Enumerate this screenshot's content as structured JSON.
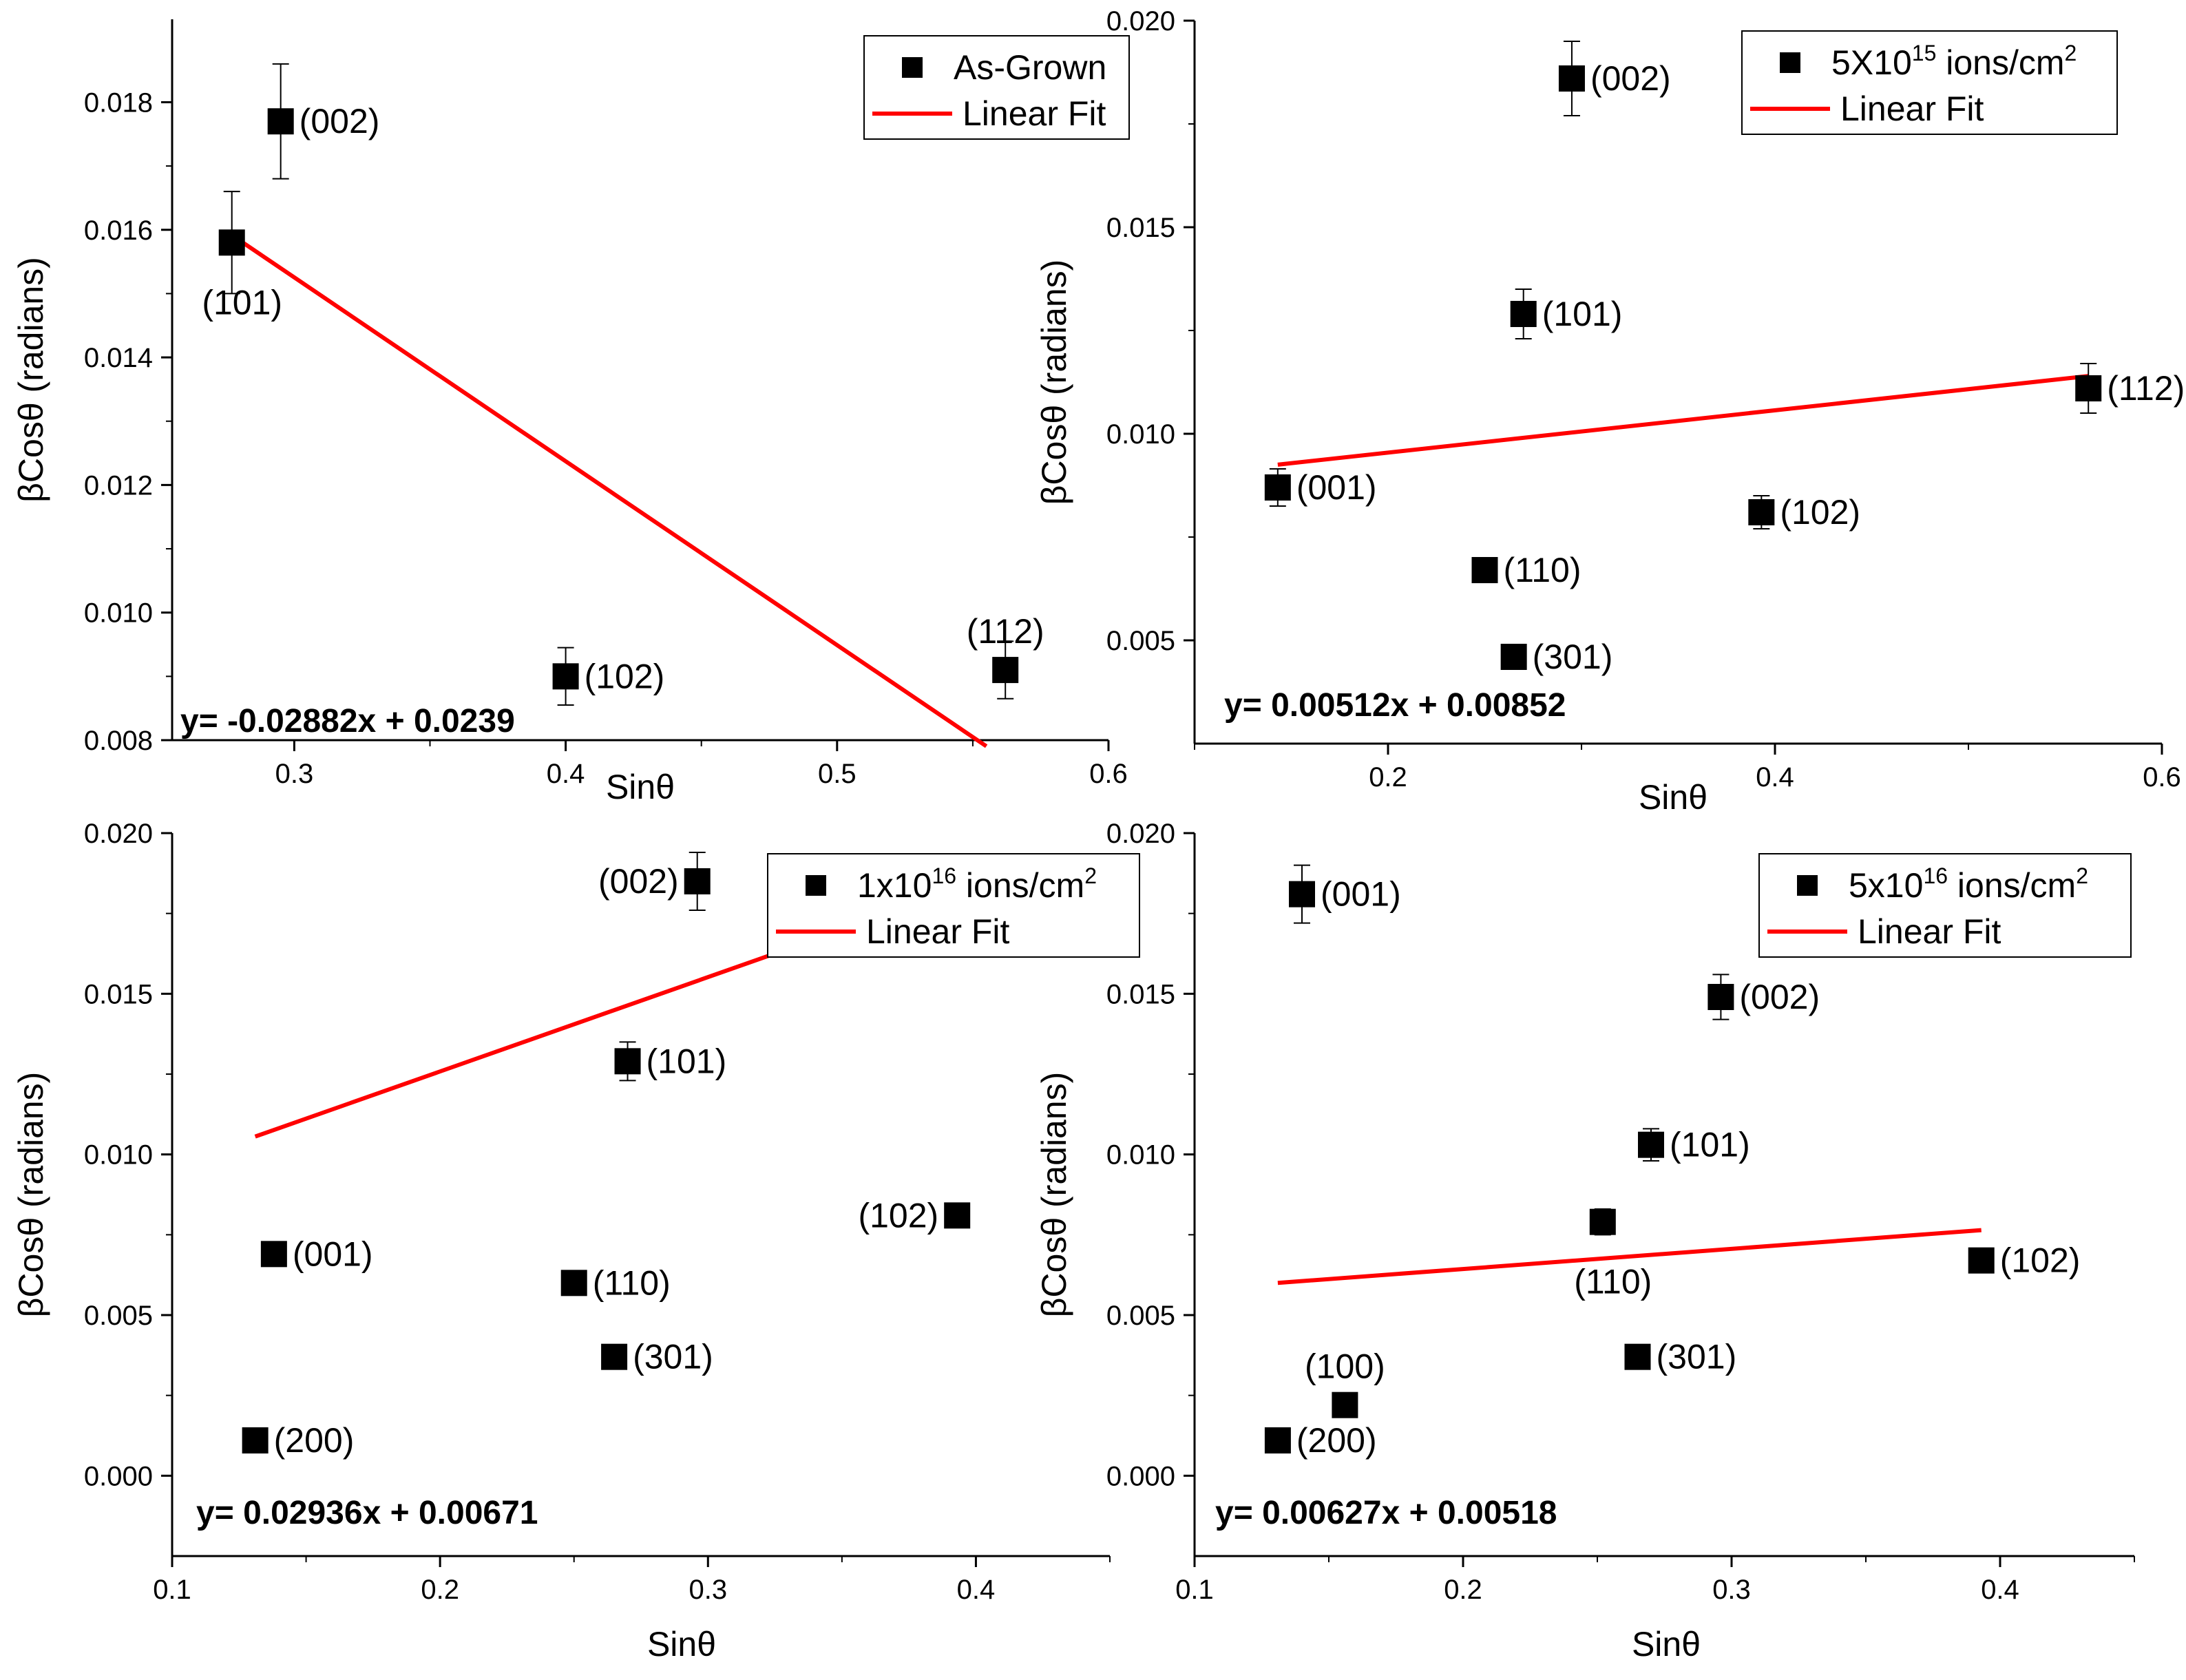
{
  "chart_data": [
    {
      "type": "scatter",
      "title": "",
      "xlabel": "Sinθ",
      "ylabel": "βCosθ (radians)",
      "xlim": [
        0.255,
        0.6
      ],
      "ylim": [
        0.008,
        0.0193
      ],
      "xticks": [
        0.3,
        0.4,
        0.5,
        0.6
      ],
      "xtick_labels": [
        "0.3",
        "0.4",
        "0.5",
        "0.6"
      ],
      "yticks": [
        0.008,
        0.01,
        0.012,
        0.014,
        0.016,
        0.018
      ],
      "ytick_labels": [
        "0.008",
        "0.010",
        "0.012",
        "0.014",
        "0.016",
        "0.018"
      ],
      "legend": {
        "position": "top-right",
        "series_name": "As-Grown",
        "series_sup": "",
        "series_suffix": "",
        "fit_name": "Linear Fit"
      },
      "points": [
        {
          "label": "(101)",
          "x": 0.277,
          "y": 0.0158,
          "err": 0.0008,
          "label_pos": "below"
        },
        {
          "label": "(002)",
          "x": 0.295,
          "y": 0.0177,
          "err": 0.0009,
          "label_pos": "right"
        },
        {
          "label": "(102)",
          "x": 0.4,
          "y": 0.009,
          "err": 0.00045,
          "label_pos": "right"
        },
        {
          "label": "(112)",
          "x": 0.562,
          "y": 0.0091,
          "err": 0.00045,
          "label_pos": "above"
        }
      ],
      "fit": {
        "slope": -0.02882,
        "intercept": 0.0239,
        "x_start": 0.277,
        "x_end": 0.555
      },
      "equation": "y= -0.02882x + 0.0239"
    },
    {
      "type": "scatter",
      "title": "",
      "xlabel": "Sinθ",
      "ylabel": "βCosθ (radians)",
      "xlim": [
        0.1,
        0.6
      ],
      "ylim": [
        0.0025,
        0.02
      ],
      "xticks": [
        0.2,
        0.4,
        0.6
      ],
      "xtick_labels": [
        "0.2",
        "0.4",
        "0.6"
      ],
      "yticks": [
        0.005,
        0.01,
        0.015,
        0.02
      ],
      "ytick_labels": [
        "0.005",
        "0.010",
        "0.015",
        "0.020"
      ],
      "legend": {
        "position": "top-right",
        "series_name": "5X10",
        "series_sup": "15",
        "series_suffix": " ions/cm",
        "series_sup2": "2",
        "fit_name": "Linear Fit"
      },
      "points": [
        {
          "label": "(001)",
          "x": 0.143,
          "y": 0.0087,
          "err": 0.00045,
          "label_pos": "right"
        },
        {
          "label": "(002)",
          "x": 0.295,
          "y": 0.0186,
          "err": 0.0009,
          "label_pos": "right"
        },
        {
          "label": "(101)",
          "x": 0.27,
          "y": 0.0129,
          "err": 0.0006,
          "label_pos": "right"
        },
        {
          "label": "(110)",
          "x": 0.25,
          "y": 0.0067,
          "err": 0.0,
          "label_pos": "right"
        },
        {
          "label": "(301)",
          "x": 0.265,
          "y": 0.0046,
          "err": 0.0,
          "label_pos": "right"
        },
        {
          "label": "(102)",
          "x": 0.393,
          "y": 0.0081,
          "err": 0.0004,
          "label_pos": "right"
        },
        {
          "label": "(112)",
          "x": 0.562,
          "y": 0.0111,
          "err": 0.0006,
          "label_pos": "right"
        }
      ],
      "fit": {
        "slope": 0.00512,
        "intercept": 0.00852,
        "x_start": 0.143,
        "x_end": 0.562
      },
      "equation": "y= 0.00512x + 0.00852"
    },
    {
      "type": "scatter",
      "title": "",
      "xlabel": "Sinθ",
      "ylabel": "βCosθ (radians)",
      "xlim": [
        0.1,
        0.45
      ],
      "ylim": [
        -0.0025,
        0.02
      ],
      "xticks": [
        0.1,
        0.2,
        0.3,
        0.4
      ],
      "xtick_labels": [
        "0.1",
        "0.2",
        "0.3",
        "0.4"
      ],
      "yticks": [
        0.0,
        0.005,
        0.01,
        0.015,
        0.02
      ],
      "ytick_labels": [
        "0.000",
        "0.005",
        "0.010",
        "0.015",
        "0.020"
      ],
      "legend": {
        "position": "top-right",
        "series_name": "1x10",
        "series_sup": "16",
        "series_suffix": " ions/cm",
        "series_sup2": "2",
        "fit_name": "Linear Fit"
      },
      "points": [
        {
          "label": "(002)",
          "x": 0.296,
          "y": 0.0185,
          "err": 0.0009,
          "label_pos": "left"
        },
        {
          "label": "(101)",
          "x": 0.27,
          "y": 0.0129,
          "err": 0.0006,
          "label_pos": "right"
        },
        {
          "label": "(001)",
          "x": 0.138,
          "y": 0.0069,
          "err": 0.0,
          "label_pos": "right"
        },
        {
          "label": "(110)",
          "x": 0.25,
          "y": 0.006,
          "err": 0.0,
          "label_pos": "right"
        },
        {
          "label": "(301)",
          "x": 0.265,
          "y": 0.0037,
          "err": 0.0,
          "label_pos": "right"
        },
        {
          "label": "(200)",
          "x": 0.131,
          "y": 0.0011,
          "err": 0.0,
          "label_pos": "right"
        },
        {
          "label": "(102)",
          "x": 0.393,
          "y": 0.0081,
          "err": 0.0,
          "label_pos": "left"
        }
      ],
      "fit": {
        "slope": 0.02936,
        "intercept": 0.00671,
        "x_start": 0.131,
        "x_end": 0.393
      },
      "equation": "y= 0.02936x + 0.00671"
    },
    {
      "type": "scatter",
      "title": "",
      "xlabel": "Sinθ",
      "ylabel": "βCosθ (radians)",
      "xlim": [
        0.1,
        0.45
      ],
      "ylim": [
        -0.0025,
        0.02
      ],
      "xticks": [
        0.1,
        0.2,
        0.3,
        0.4
      ],
      "xtick_labels": [
        "0.1",
        "0.2",
        "0.3",
        "0.4"
      ],
      "yticks": [
        0.0,
        0.005,
        0.01,
        0.015,
        0.02
      ],
      "ytick_labels": [
        "0.000",
        "0.005",
        "0.010",
        "0.015",
        "0.020"
      ],
      "legend": {
        "position": "top-right",
        "series_name": "5x10",
        "series_sup": "16",
        "series_suffix": " ions/cm",
        "series_sup2": "2",
        "fit_name": "Linear Fit"
      },
      "points": [
        {
          "label": "(001)",
          "x": 0.14,
          "y": 0.0181,
          "err": 0.0009,
          "label_pos": "right"
        },
        {
          "label": "(002)",
          "x": 0.296,
          "y": 0.0149,
          "err": 0.0007,
          "label_pos": "right"
        },
        {
          "label": "(101)",
          "x": 0.27,
          "y": 0.0103,
          "err": 0.0005,
          "label_pos": "right"
        },
        {
          "label": "(110)",
          "x": 0.252,
          "y": 0.0079,
          "err": 0.0004,
          "label_pos": "below"
        },
        {
          "label": "(102)",
          "x": 0.393,
          "y": 0.0067,
          "err": 0.0,
          "label_pos": "right"
        },
        {
          "label": "(301)",
          "x": 0.265,
          "y": 0.0037,
          "err": 0.0,
          "label_pos": "right"
        },
        {
          "label": "(100)",
          "x": 0.156,
          "y": 0.0022,
          "err": 0.0,
          "label_pos": "above"
        },
        {
          "label": "(200)",
          "x": 0.131,
          "y": 0.0011,
          "err": 0.0,
          "label_pos": "right"
        }
      ],
      "fit": {
        "slope": 0.00627,
        "intercept": 0.00518,
        "x_start": 0.131,
        "x_end": 0.393
      },
      "equation": "y= 0.00627x + 0.00518"
    }
  ],
  "colors": {
    "marker": "#000000",
    "fit_line": "#ff0000",
    "axis": "#000000",
    "background": "#ffffff"
  }
}
